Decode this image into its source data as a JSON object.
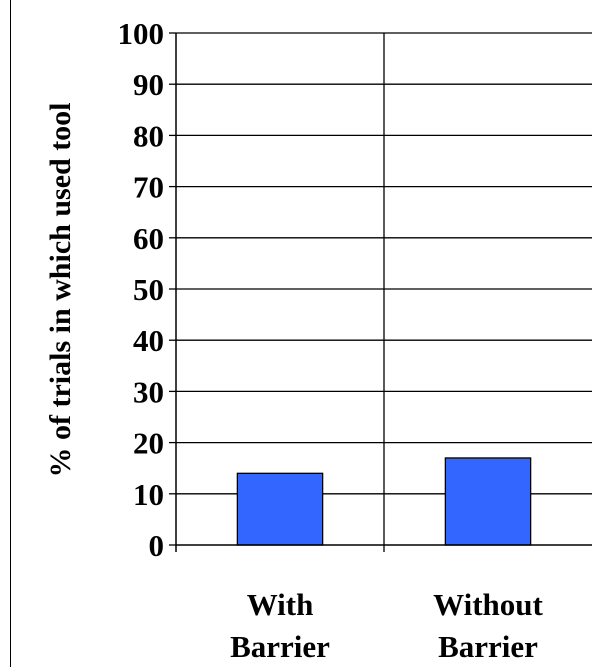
{
  "chart_data": {
    "type": "bar",
    "title": "",
    "xlabel": "",
    "ylabel": "% of trials in which used tool",
    "categories": [
      [
        "With",
        "Barrier"
      ],
      [
        "Without",
        "Barrier"
      ]
    ],
    "values": [
      14,
      17
    ],
    "ylim": [
      0,
      100
    ],
    "yticks": [
      0,
      10,
      20,
      30,
      40,
      50,
      60,
      70,
      80,
      90,
      100
    ],
    "grid": true,
    "legend": "none",
    "colors": {
      "bar_fill": "#3366ff",
      "bar_stroke": "#000000",
      "grid": "#000000",
      "axis": "#000000"
    }
  }
}
